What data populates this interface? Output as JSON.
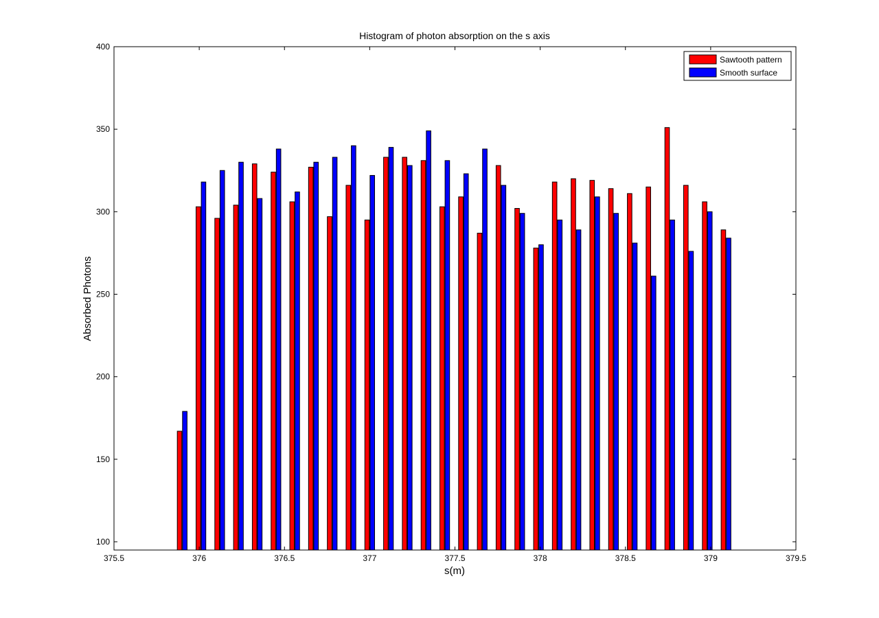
{
  "chart_data": {
    "type": "bar",
    "title": "Histogram of photon absorption on the s axis",
    "xlabel": "s(m)",
    "ylabel": "Absorbed Photons",
    "xlim": [
      375.5,
      379.5
    ],
    "ylim": [
      95,
      400
    ],
    "x_ticks": [
      "375.5",
      "376",
      "376.5",
      "377",
      "377.5",
      "378",
      "378.5",
      "379",
      "379.5"
    ],
    "y_ticks": [
      "100",
      "150",
      "200",
      "250",
      "300",
      "350",
      "400"
    ],
    "grid": false,
    "legend_position": "top-right",
    "x": [
      375.9,
      376.01,
      376.12,
      376.23,
      376.34,
      376.45,
      376.56,
      376.67,
      376.78,
      376.89,
      377.0,
      377.11,
      377.22,
      377.33,
      377.44,
      377.55,
      377.66,
      377.77,
      377.88,
      377.99,
      378.1,
      378.21,
      378.32,
      378.43,
      378.54,
      378.65,
      378.76,
      378.87,
      378.98,
      379.09
    ],
    "series": [
      {
        "name": "Sawtooth pattern",
        "color": "#ff0000",
        "values": [
          167,
          303,
          296,
          304,
          329,
          324,
          306,
          327,
          297,
          316,
          295,
          333,
          333,
          331,
          303,
          309,
          287,
          328,
          302,
          278,
          318,
          320,
          319,
          314,
          311,
          315,
          351,
          316,
          306,
          289
        ]
      },
      {
        "name": "Smooth surface",
        "color": "#0000ff",
        "values": [
          179,
          318,
          325,
          330,
          308,
          338,
          312,
          330,
          333,
          340,
          322,
          339,
          328,
          349,
          331,
          323,
          338,
          316,
          299,
          280,
          295,
          289,
          309,
          299,
          281,
          261,
          295,
          276,
          300,
          284
        ]
      }
    ]
  }
}
